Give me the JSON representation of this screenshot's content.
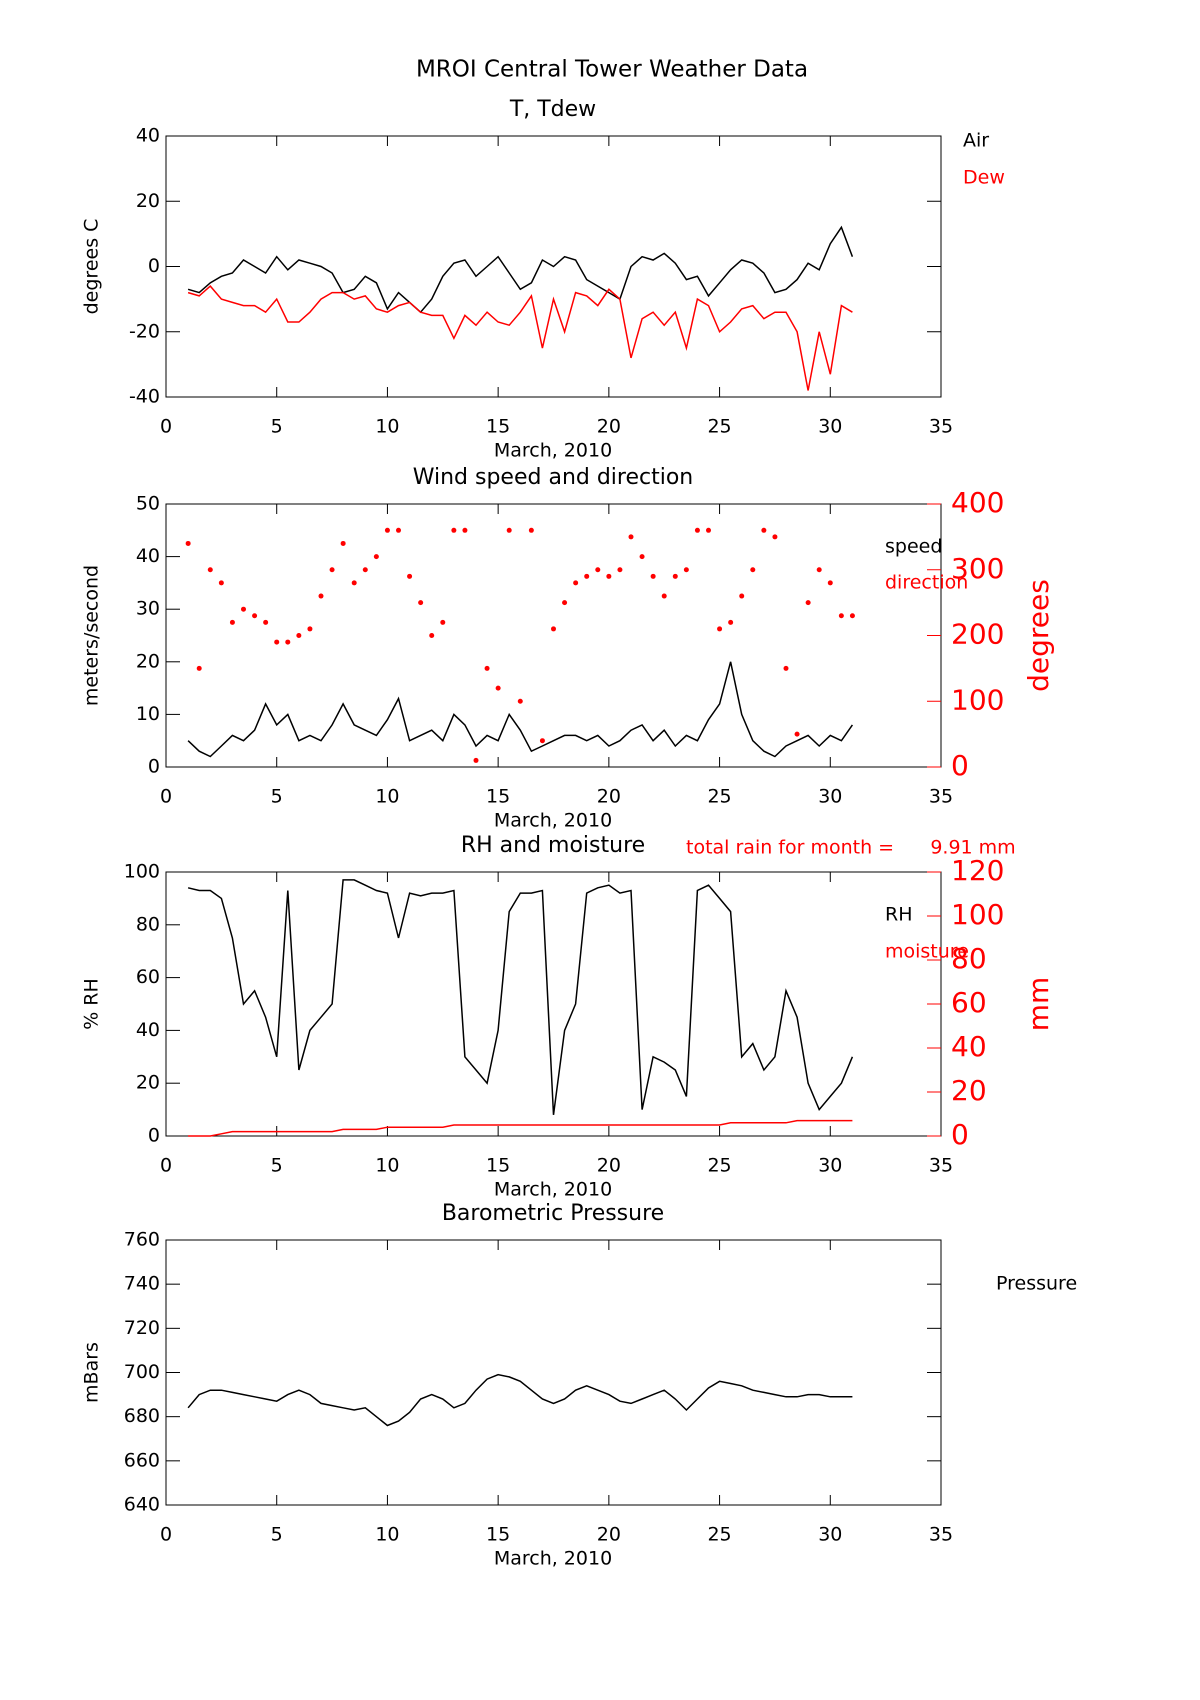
{
  "title": "MROI Central Tower Weather Data",
  "chart_data": [
    {
      "type": "line",
      "title": "T, Tdew",
      "xlabel": "March, 2010",
      "ylabel": "degrees C",
      "xlim": [
        0,
        35
      ],
      "xticks": [
        0,
        5,
        10,
        15,
        20,
        25,
        30,
        35
      ],
      "ylim": [
        -40,
        40
      ],
      "yticks": [
        -40,
        -20,
        0,
        20,
        40
      ],
      "x": [
        1,
        1.5,
        2,
        2.5,
        3,
        3.5,
        4,
        4.5,
        5,
        5.5,
        6,
        6.5,
        7,
        7.5,
        8,
        8.5,
        9,
        9.5,
        10,
        10.5,
        11,
        11.5,
        12,
        12.5,
        13,
        13.5,
        14,
        14.5,
        15,
        15.5,
        16,
        16.5,
        17,
        17.5,
        18,
        18.5,
        19,
        19.5,
        20,
        20.5,
        21,
        21.5,
        22,
        22.5,
        23,
        23.5,
        24,
        24.5,
        25,
        25.5,
        26,
        26.5,
        27,
        27.5,
        28,
        28.5,
        29,
        29.5,
        30,
        30.5,
        31
      ],
      "series": [
        {
          "name": "Air",
          "color": "#000000",
          "values": [
            -7,
            -8,
            -5,
            -3,
            -2,
            2,
            0,
            -2,
            3,
            -1,
            2,
            1,
            0,
            -2,
            -8,
            -7,
            -3,
            -5,
            -13,
            -8,
            -11,
            -14,
            -10,
            -3,
            1,
            2,
            -3,
            0,
            3,
            -2,
            -7,
            -5,
            2,
            0,
            3,
            2,
            -4,
            -6,
            -8,
            -10,
            0,
            3,
            2,
            4,
            1,
            -4,
            -3,
            -9,
            -5,
            -1,
            2,
            1,
            -2,
            -8,
            -7,
            -4,
            1,
            -1,
            7,
            12,
            3
          ]
        },
        {
          "name": "Dew",
          "color": "#ff0000",
          "values": [
            -8,
            -9,
            -6,
            -10,
            -11,
            -12,
            -12,
            -14,
            -10,
            -17,
            -17,
            -14,
            -10,
            -8,
            -8,
            -10,
            -9,
            -13,
            -14,
            -12,
            -11,
            -14,
            -15,
            -15,
            -22,
            -15,
            -18,
            -14,
            -17,
            -18,
            -14,
            -9,
            -25,
            -10,
            -20,
            -8,
            -9,
            -12,
            -7,
            -10,
            -28,
            -16,
            -14,
            -18,
            -14,
            -25,
            -10,
            -12,
            -20,
            -17,
            -13,
            -12,
            -16,
            -14,
            -14,
            -20,
            -38,
            -20,
            -33,
            -12,
            -14
          ]
        }
      ]
    },
    {
      "type": "line",
      "title": "Wind speed and direction",
      "xlabel": "March, 2010",
      "ylabel": "meters/second",
      "y2label": "degrees",
      "xlim": [
        0,
        35
      ],
      "xticks": [
        0,
        5,
        10,
        15,
        20,
        25,
        30,
        35
      ],
      "ylim": [
        0,
        50
      ],
      "yticks": [
        0,
        10,
        20,
        30,
        40,
        50
      ],
      "y2lim": [
        0,
        400
      ],
      "y2ticks": [
        0,
        100,
        200,
        300,
        400
      ],
      "x": [
        1,
        1.5,
        2,
        2.5,
        3,
        3.5,
        4,
        4.5,
        5,
        5.5,
        6,
        6.5,
        7,
        7.5,
        8,
        8.5,
        9,
        9.5,
        10,
        10.5,
        11,
        11.5,
        12,
        12.5,
        13,
        13.5,
        14,
        14.5,
        15,
        15.5,
        16,
        16.5,
        17,
        17.5,
        18,
        18.5,
        19,
        19.5,
        20,
        20.5,
        21,
        21.5,
        22,
        22.5,
        23,
        23.5,
        24,
        24.5,
        25,
        25.5,
        26,
        26.5,
        27,
        27.5,
        28,
        28.5,
        29,
        29.5,
        30,
        30.5,
        31
      ],
      "series": [
        {
          "name": "speed",
          "color": "#000000",
          "style": "line",
          "values": [
            5,
            3,
            2,
            4,
            6,
            5,
            7,
            12,
            8,
            10,
            5,
            6,
            5,
            8,
            12,
            8,
            7,
            6,
            9,
            13,
            5,
            6,
            7,
            5,
            10,
            8,
            4,
            6,
            5,
            10,
            7,
            3,
            4,
            5,
            6,
            6,
            5,
            6,
            4,
            5,
            7,
            8,
            5,
            7,
            4,
            6,
            5,
            9,
            12,
            20,
            10,
            5,
            3,
            2,
            4,
            5,
            6,
            4,
            6,
            5,
            8
          ]
        },
        {
          "name": "direction",
          "color": "#ff0000",
          "style": "dots",
          "axis": "y2",
          "values": [
            340,
            150,
            300,
            280,
            220,
            240,
            230,
            220,
            190,
            190,
            200,
            210,
            260,
            300,
            340,
            280,
            300,
            320,
            360,
            360,
            290,
            250,
            200,
            220,
            360,
            360,
            10,
            150,
            120,
            360,
            100,
            360,
            40,
            210,
            250,
            280,
            290,
            300,
            290,
            300,
            350,
            320,
            290,
            260,
            290,
            300,
            360,
            360,
            210,
            220,
            260,
            300,
            360,
            350,
            150,
            50,
            250,
            300,
            280,
            230,
            230
          ]
        }
      ]
    },
    {
      "type": "line",
      "title": "RH and moisture",
      "annotation": "total rain for month =      9.91 mm",
      "xlabel": "March, 2010",
      "ylabel": "% RH",
      "y2label": "mm",
      "xlim": [
        0,
        35
      ],
      "xticks": [
        0,
        5,
        10,
        15,
        20,
        25,
        30,
        35
      ],
      "ylim": [
        0,
        100
      ],
      "yticks": [
        0,
        20,
        40,
        60,
        80,
        100
      ],
      "y2lim": [
        0,
        120
      ],
      "y2ticks": [
        0,
        20,
        40,
        60,
        80,
        100,
        120
      ],
      "x": [
        1,
        1.5,
        2,
        2.5,
        3,
        3.5,
        4,
        4.5,
        5,
        5.5,
        6,
        6.5,
        7,
        7.5,
        8,
        8.5,
        9,
        9.5,
        10,
        10.5,
        11,
        11.5,
        12,
        12.5,
        13,
        13.5,
        14,
        14.5,
        15,
        15.5,
        16,
        16.5,
        17,
        17.5,
        18,
        18.5,
        19,
        19.5,
        20,
        20.5,
        21,
        21.5,
        22,
        22.5,
        23,
        23.5,
        24,
        24.5,
        25,
        25.5,
        26,
        26.5,
        27,
        27.5,
        28,
        28.5,
        29,
        29.5,
        30,
        30.5,
        31
      ],
      "series": [
        {
          "name": "RH",
          "color": "#000000",
          "style": "line",
          "values": [
            94,
            93,
            93,
            90,
            75,
            50,
            55,
            45,
            30,
            93,
            25,
            40,
            45,
            50,
            97,
            97,
            95,
            93,
            92,
            75,
            92,
            91,
            92,
            92,
            93,
            30,
            25,
            20,
            40,
            85,
            92,
            92,
            93,
            8,
            40,
            50,
            92,
            94,
            95,
            92,
            93,
            10,
            30,
            28,
            25,
            15,
            93,
            95,
            90,
            85,
            30,
            35,
            25,
            30,
            55,
            45,
            20,
            10,
            15,
            20,
            30
          ]
        },
        {
          "name": "moisture",
          "color": "#ff0000",
          "style": "line",
          "axis": "y2",
          "values": [
            0,
            0,
            0,
            1,
            2,
            2,
            2,
            2,
            2,
            2,
            2,
            2,
            2,
            2,
            3,
            3,
            3,
            3,
            4,
            4,
            4,
            4,
            4,
            4,
            5,
            5,
            5,
            5,
            5,
            5,
            5,
            5,
            5,
            5,
            5,
            5,
            5,
            5,
            5,
            5,
            5,
            5,
            5,
            5,
            5,
            5,
            5,
            5,
            5,
            6,
            6,
            6,
            6,
            6,
            6,
            7,
            7,
            7,
            7,
            7,
            7
          ]
        }
      ]
    },
    {
      "type": "line",
      "title": "Barometric Pressure",
      "xlabel": "March, 2010",
      "ylabel": "mBars",
      "xlim": [
        0,
        35
      ],
      "xticks": [
        0,
        5,
        10,
        15,
        20,
        25,
        30,
        35
      ],
      "ylim": [
        640,
        760
      ],
      "yticks": [
        640,
        660,
        680,
        700,
        720,
        740,
        760
      ],
      "x": [
        1,
        1.5,
        2,
        2.5,
        3,
        3.5,
        4,
        4.5,
        5,
        5.5,
        6,
        6.5,
        7,
        7.5,
        8,
        8.5,
        9,
        9.5,
        10,
        10.5,
        11,
        11.5,
        12,
        12.5,
        13,
        13.5,
        14,
        14.5,
        15,
        15.5,
        16,
        16.5,
        17,
        17.5,
        18,
        18.5,
        19,
        19.5,
        20,
        20.5,
        21,
        21.5,
        22,
        22.5,
        23,
        23.5,
        24,
        24.5,
        25,
        25.5,
        26,
        26.5,
        27,
        27.5,
        28,
        28.5,
        29,
        29.5,
        30,
        30.5,
        31
      ],
      "series": [
        {
          "name": "Pressure",
          "color": "#000000",
          "style": "line",
          "values": [
            684,
            690,
            692,
            692,
            691,
            690,
            689,
            688,
            687,
            690,
            692,
            690,
            686,
            685,
            684,
            683,
            684,
            680,
            676,
            678,
            682,
            688,
            690,
            688,
            684,
            686,
            692,
            697,
            699,
            698,
            696,
            692,
            688,
            686,
            688,
            692,
            694,
            692,
            690,
            687,
            686,
            688,
            690,
            692,
            688,
            683,
            688,
            693,
            696,
            695,
            694,
            692,
            691,
            690,
            689,
            689,
            690,
            690,
            689,
            689,
            689
          ]
        }
      ]
    }
  ]
}
